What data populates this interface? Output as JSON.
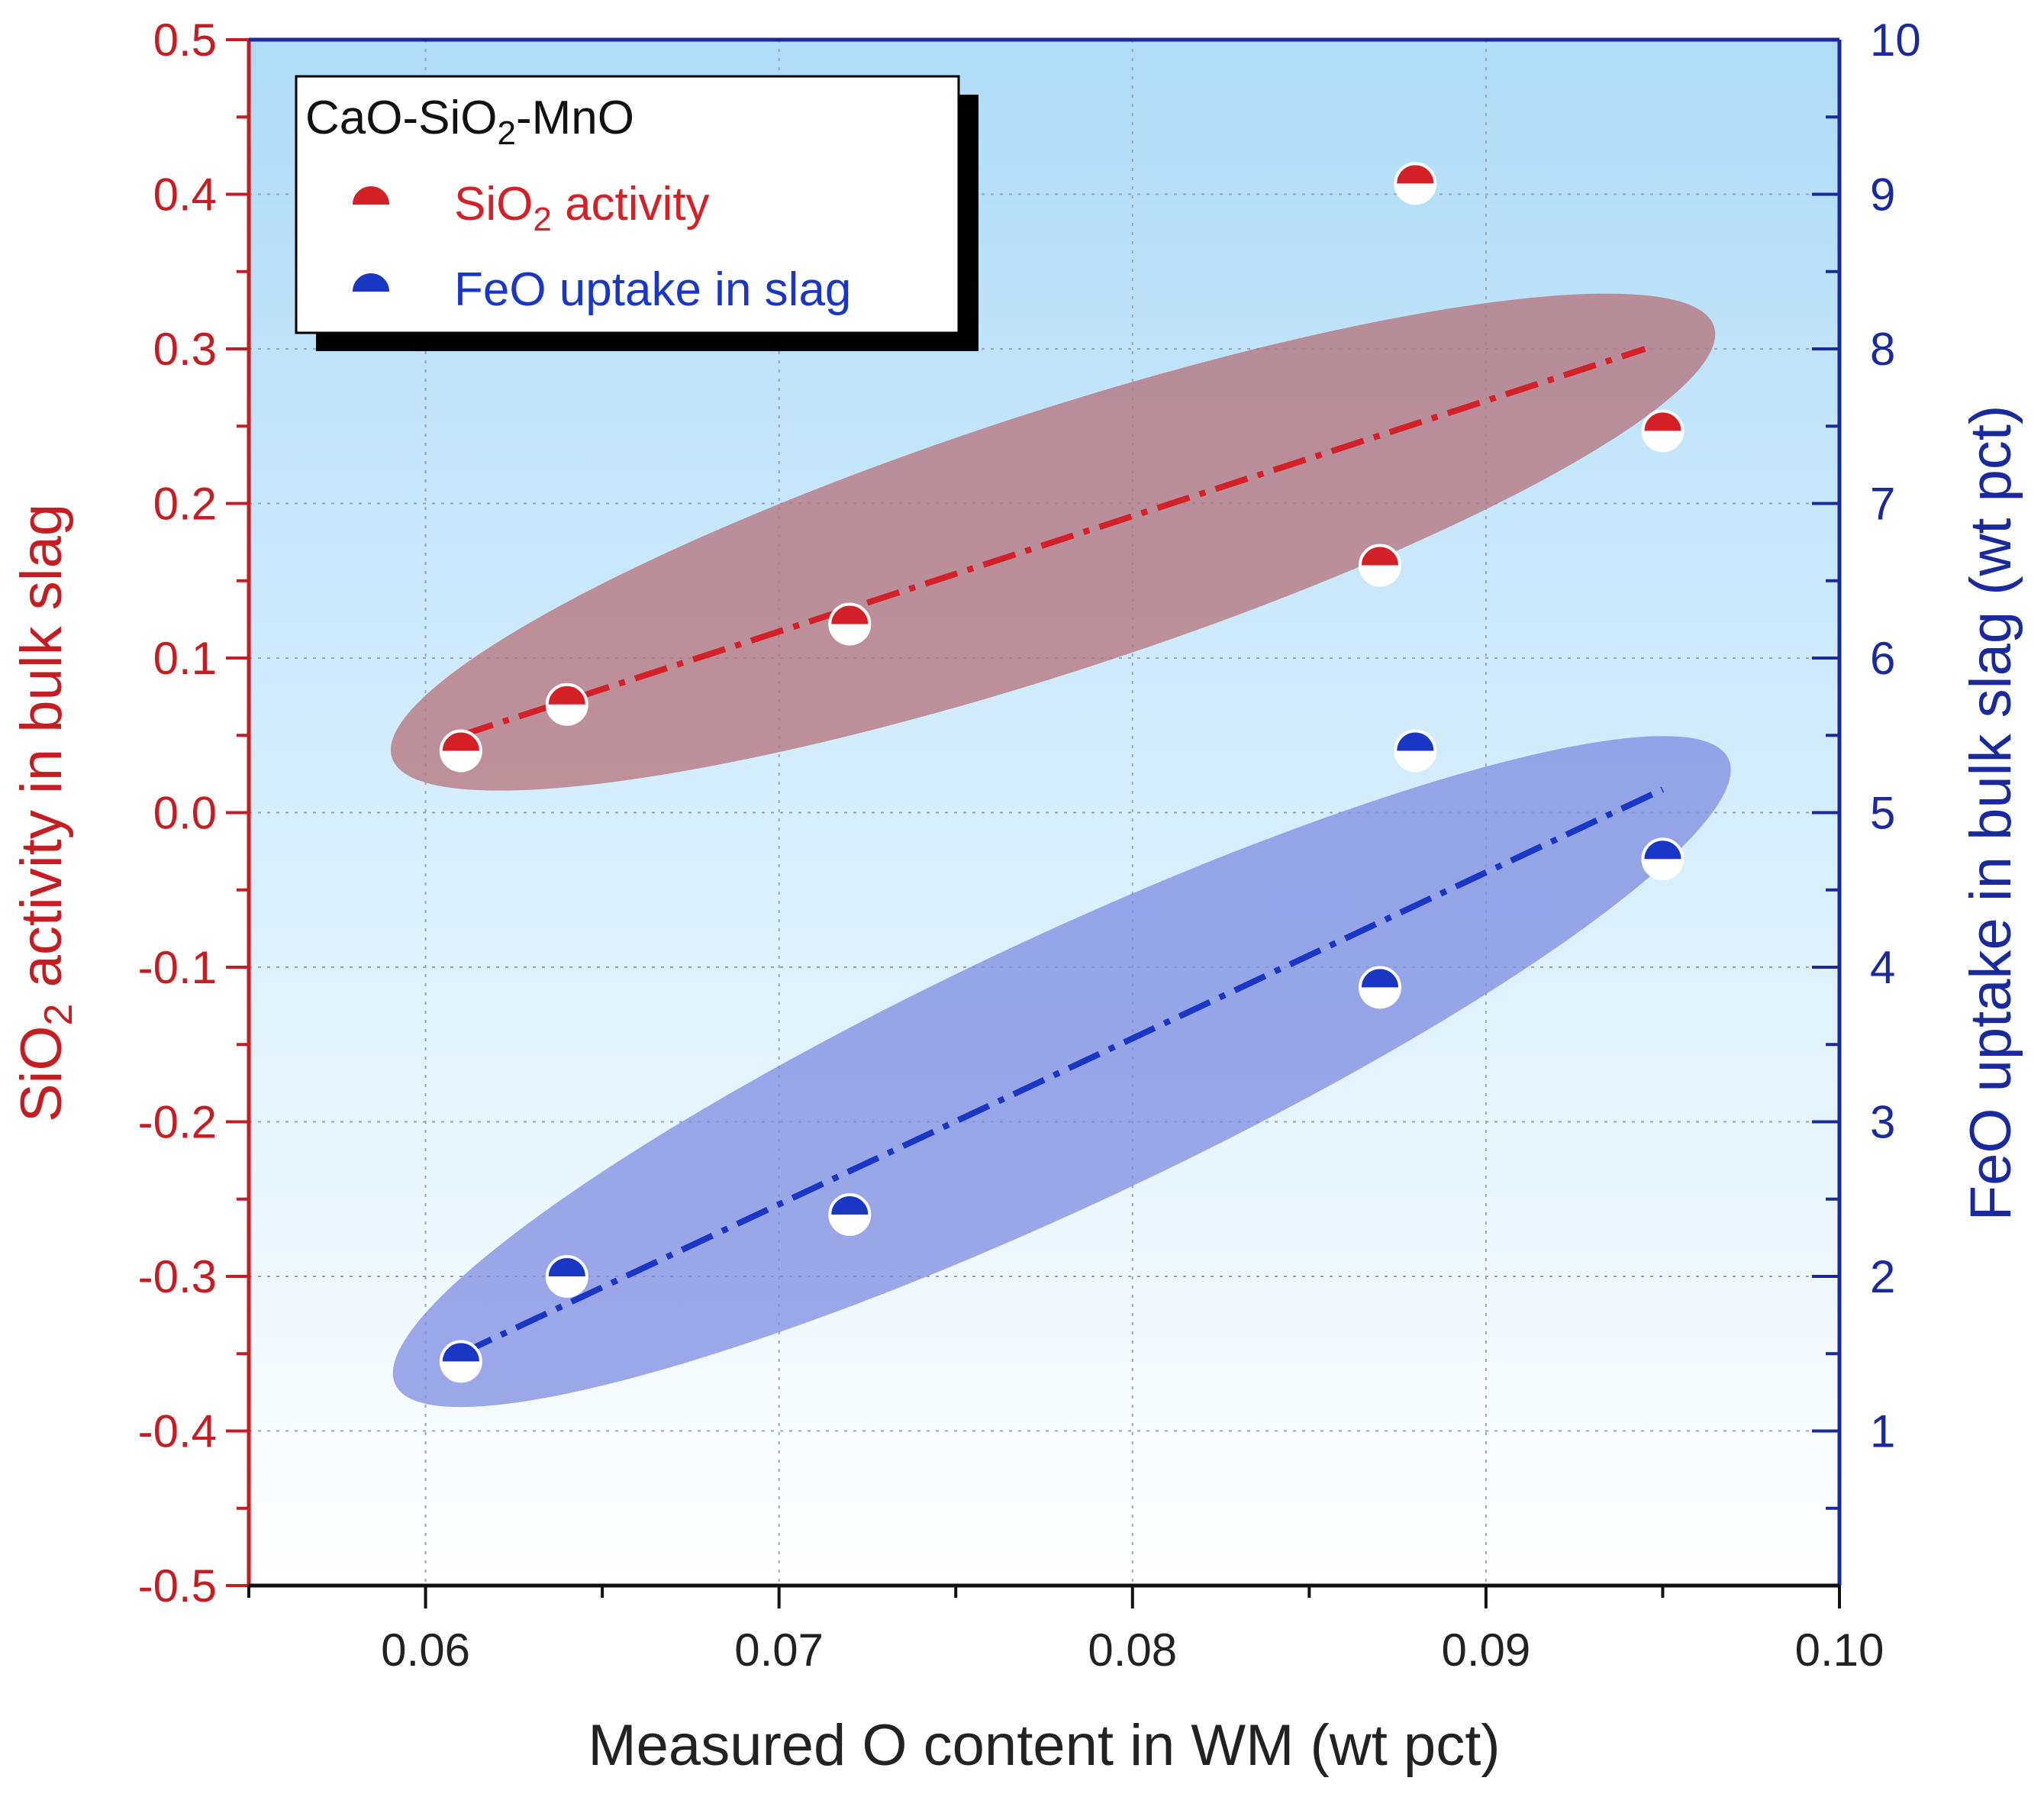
{
  "chart_data": {
    "type": "scatter",
    "xlabel": "Measured O content in WM (wt pct)",
    "ylabel_left": {
      "prefix": "SiO",
      "sub": "2",
      "suffix": " activity in bulk slag"
    },
    "ylabel_right": "FeO uptake in bulk slag (wt pct)",
    "xlim": [
      0.055,
      0.1
    ],
    "ylim_left": [
      -0.5,
      0.5
    ],
    "ylim_right": [
      0,
      10
    ],
    "x_ticks": [
      0.06,
      0.07,
      0.08,
      0.09,
      0.1
    ],
    "x_tick_labels": [
      "0.06",
      "0.07",
      "0.08",
      "0.09",
      "0.10"
    ],
    "y_left_ticks": [
      0.5,
      0.4,
      0.3,
      0.2,
      0.1,
      0.0,
      -0.1,
      -0.2,
      -0.3,
      -0.4,
      -0.5
    ],
    "y_left_tick_labels": [
      "0.5",
      "0.4",
      "0.3",
      "0.2",
      "0.1",
      "0.0",
      "-0.1",
      "-0.2",
      "-0.3",
      "-0.4",
      "-0.5"
    ],
    "y_right_ticks": [
      10,
      9,
      8,
      7,
      6,
      5,
      4,
      3,
      2,
      1
    ],
    "y_right_tick_labels": [
      "10",
      "9",
      "8",
      "7",
      "6",
      "5",
      "4",
      "3",
      "2",
      "1"
    ],
    "grid": true,
    "legend": {
      "position": "top-left",
      "title": {
        "prefix": "CaO-SiO",
        "sub": "2",
        "suffix": "-MnO"
      },
      "entries": [
        {
          "prefix": "SiO",
          "sub": "2",
          "suffix": " activity"
        },
        {
          "prefix": "FeO uptake in slag",
          "sub": "",
          "suffix": ""
        }
      ]
    },
    "series": [
      {
        "name": "SiO2 activity",
        "axis": "left",
        "color": "#d42127",
        "points": [
          {
            "x": 0.061,
            "y": 0.04
          },
          {
            "x": 0.064,
            "y": 0.07
          },
          {
            "x": 0.072,
            "y": 0.122
          },
          {
            "x": 0.087,
            "y": 0.16
          },
          {
            "x": 0.088,
            "y": 0.407
          },
          {
            "x": 0.095,
            "y": 0.247
          }
        ],
        "fit": [
          {
            "x": 0.061,
            "y": 0.05
          },
          {
            "x": 0.0945,
            "y": 0.3
          }
        ],
        "ellipse_color": "#b5707a"
      },
      {
        "name": "FeO uptake in slag",
        "axis": "right",
        "color": "#1a36c4",
        "points": [
          {
            "x": 0.061,
            "y": 1.45
          },
          {
            "x": 0.064,
            "y": 2.0
          },
          {
            "x": 0.072,
            "y": 2.4
          },
          {
            "x": 0.087,
            "y": 3.87
          },
          {
            "x": 0.088,
            "y": 5.4
          },
          {
            "x": 0.095,
            "y": 4.7
          }
        ],
        "fit": [
          {
            "x": 0.061,
            "y": 1.5
          },
          {
            "x": 0.095,
            "y": 5.15
          }
        ],
        "ellipse_color": "#7d8be0"
      }
    ]
  },
  "colors": {
    "left_axis": "#c41e22",
    "right_axis": "#1a2a9c",
    "background_top": "#aedcf9",
    "background_bottom": "#ffffff"
  }
}
